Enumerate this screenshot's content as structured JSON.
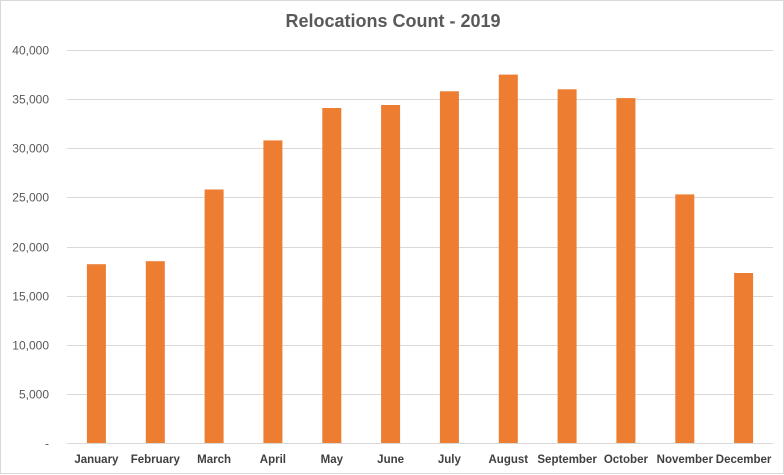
{
  "chart_data": {
    "type": "bar",
    "title": "Relocations Count - 2019",
    "xlabel": "",
    "ylabel": "",
    "categories": [
      "January",
      "February",
      "March",
      "April",
      "May",
      "June",
      "July",
      "August",
      "September",
      "October",
      "November",
      "December"
    ],
    "values": [
      18200,
      18500,
      25800,
      30800,
      34100,
      34400,
      35800,
      37500,
      36000,
      35100,
      25300,
      17300
    ],
    "ylim": [
      0,
      40000
    ],
    "yticks": [
      "-",
      "5,000",
      "10,000",
      "15,000",
      "20,000",
      "25,000",
      "30,000",
      "35,000",
      "40,000"
    ],
    "grid": true,
    "legend": "none",
    "bar_color": "#ED7D31",
    "grid_color": "#d9d9d9"
  }
}
